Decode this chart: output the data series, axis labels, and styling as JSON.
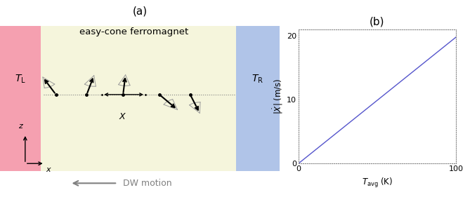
{
  "fig_width": 6.69,
  "fig_height": 2.81,
  "dpi": 100,
  "panel_a": {
    "label": "(a)",
    "bg_color": "#f5f5dc",
    "left_rect_color": "#f5a0b0",
    "right_rect_color": "#b0c4e8",
    "left_label": "$T_\\mathrm{L}$",
    "right_label": "$T_\\mathrm{R}$",
    "title": "easy-cone ferromagnet",
    "dw_label": "DW motion",
    "x_label": "$x$",
    "z_label": "$z$",
    "X_label": "$X$"
  },
  "panel_b": {
    "label": "(b)",
    "x_data": [
      0,
      100
    ],
    "y_data": [
      0,
      19.8
    ],
    "line_color": "#5555cc",
    "xlabel_parts": [
      "$T_\\mathrm{avg}$",
      " (K)"
    ],
    "ylabel": "$|\\dot{X}|$ (m/s)",
    "xlim": [
      0,
      100
    ],
    "ylim": [
      0,
      21
    ],
    "xticks": [
      0,
      100
    ],
    "yticks": [
      0,
      10,
      20
    ]
  }
}
